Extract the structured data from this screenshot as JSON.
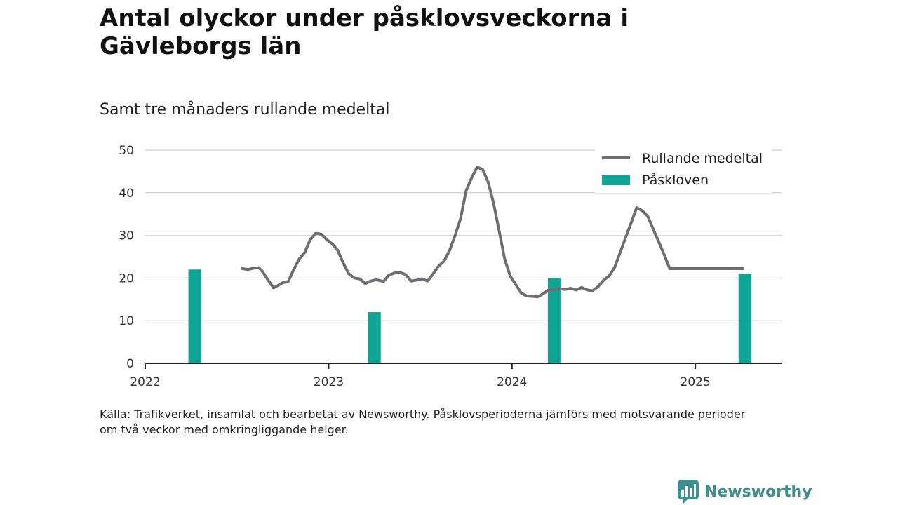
{
  "title": "Antal olyckor under påsklovsveckorna i Gävleborgs län",
  "subtitle": "Samt tre månaders rullande medeltal",
  "source_line1": "Källa: Trafikverket, insamlat och bearbetat av Newsworthy. Påsklovsperioderna jämförs med motsvarande perioder",
  "source_line2": "om två veckor med omkringliggande helger.",
  "brand": "Newsworthy",
  "colors": {
    "line": "#6e6d74",
    "bar": "#0fa596",
    "grid": "#d9d9d9",
    "axis": "#222222",
    "brand": "#3f8f8c"
  },
  "chart_data": {
    "type": "bar+line",
    "ylim": [
      0,
      50
    ],
    "yticks": [
      0,
      10,
      20,
      30,
      40,
      50
    ],
    "xlim": [
      2022.0,
      2025.47
    ],
    "xticks": [
      2022,
      2023,
      2024,
      2025
    ],
    "xtick_labels": [
      "2022",
      "2023",
      "2024",
      "2025"
    ],
    "grid": true,
    "legend_position": "top-right",
    "legend": [
      {
        "label": "Rullande medeltal",
        "kind": "line"
      },
      {
        "label": "Påskloven",
        "kind": "bar"
      }
    ],
    "bars": {
      "name": "Påskloven",
      "x": [
        2022.27,
        2023.25,
        2024.23,
        2025.27
      ],
      "values": [
        22,
        12,
        20,
        21
      ]
    },
    "line": {
      "name": "Rullande medeltal",
      "x": [
        2022.53,
        2022.56,
        2022.59,
        2022.62,
        2022.64,
        2022.67,
        2022.7,
        2022.73,
        2022.75,
        2022.78,
        2022.81,
        2022.84,
        2022.87,
        2022.9,
        2022.93,
        2022.96,
        2022.99,
        2023.02,
        2023.05,
        2023.08,
        2023.11,
        2023.14,
        2023.17,
        2023.2,
        2023.23,
        2023.26,
        2023.3,
        2023.33,
        2023.36,
        2023.39,
        2023.42,
        2023.45,
        2023.48,
        2023.51,
        2023.54,
        2023.57,
        2023.6,
        2023.63,
        2023.66,
        2023.69,
        2023.72,
        2023.75,
        2023.78,
        2023.81,
        2023.84,
        2023.87,
        2023.9,
        2023.93,
        2023.96,
        2023.99,
        2024.02,
        2024.05,
        2024.08,
        2024.11,
        2024.14,
        2024.17,
        2024.2,
        2024.23,
        2024.26,
        2024.29,
        2024.32,
        2024.35,
        2024.38,
        2024.41,
        2024.44,
        2024.47,
        2024.5,
        2024.53,
        2024.56,
        2024.59,
        2024.62,
        2024.65,
        2024.68,
        2024.71,
        2024.74,
        2024.77,
        2024.8,
        2024.83,
        2024.86,
        2024.89,
        2024.92,
        2024.95,
        2024.98,
        2025.01,
        2025.04,
        2025.07,
        2025.1,
        2025.13,
        2025.16,
        2025.19,
        2025.22,
        2025.26
      ],
      "values": [
        22.2,
        22.0,
        22.3,
        22.4,
        21.5,
        19.5,
        17.7,
        18.4,
        18.9,
        19.2,
        22.0,
        24.5,
        26.0,
        29.0,
        30.5,
        30.3,
        29.0,
        28.0,
        26.5,
        23.5,
        21.0,
        20.0,
        19.8,
        18.7,
        19.3,
        19.6,
        19.2,
        20.7,
        21.2,
        21.3,
        20.8,
        19.3,
        19.5,
        19.8,
        19.3,
        21.0,
        22.8,
        24.0,
        26.5,
        30.0,
        34.0,
        40.5,
        43.5,
        46.0,
        45.5,
        42.5,
        37.5,
        31.0,
        24.5,
        20.5,
        18.5,
        16.5,
        15.8,
        15.7,
        15.6,
        16.3,
        17.2,
        17.3,
        17.5,
        17.3,
        17.6,
        17.2,
        17.8,
        17.2,
        17.0,
        18.0,
        19.5,
        20.5,
        22.5,
        26.0,
        29.5,
        33.0,
        36.5,
        35.8,
        34.5,
        31.5,
        28.5,
        25.5,
        22.2,
        22.2,
        22.2,
        22.2,
        22.2,
        22.2,
        22.2,
        22.2,
        22.2,
        22.2,
        22.2,
        22.2,
        22.2,
        22.2
      ]
    }
  }
}
